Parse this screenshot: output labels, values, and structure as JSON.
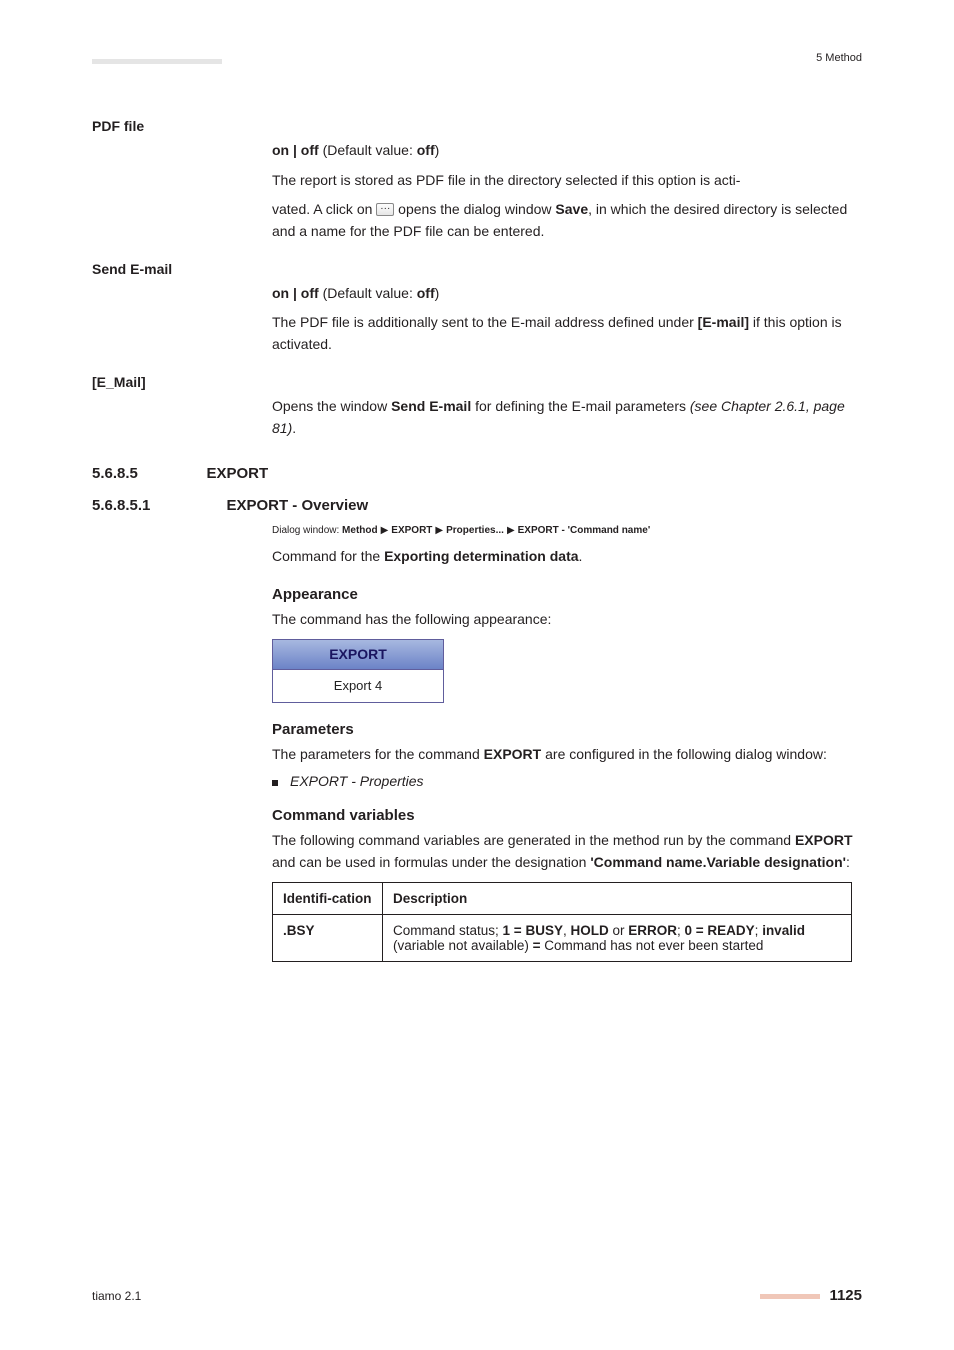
{
  "header": {
    "section": "5 Method"
  },
  "pdf_file": {
    "label": "PDF file",
    "option_line_html": "<b>on | off</b> (Default value: <b>off</b>)",
    "desc1": "The report is stored as PDF file in the directory selected if this option is acti-",
    "desc2_before": "vated. A click on ",
    "desc2_after_html": " opens the dialog window <b>Save</b>, in which the desired directory is selected and a name for the PDF file can be entered."
  },
  "send_email": {
    "label": "Send E-mail",
    "option_line_html": "<b>on | off</b> (Default value: <b>off</b>)",
    "desc_html": "The PDF file is additionally sent to the E-mail address defined under <b>[E-mail]</b> if this option is activated."
  },
  "e_mail": {
    "label": "[E_Mail]",
    "desc_html": "Opens the window <b>Send E-mail</b> for defining the E-mail parameters <i>(see Chapter 2.6.1, page 81)</i>."
  },
  "s568_5": {
    "num": "5.6.8.5",
    "title": "EXPORT"
  },
  "s568_51": {
    "num": "5.6.8.5.1",
    "title": "EXPORT - Overview",
    "path_parts": [
      "Dialog window: ",
      "Method",
      "EXPORT",
      "Properties...",
      "EXPORT - 'Command name'"
    ],
    "cmd_line_html": "Command for the <b>Exporting determination data</b>."
  },
  "appearance": {
    "heading": "Appearance",
    "text": "The command has the following appearance:",
    "box_top": "EXPORT",
    "box_bottom": "Export 4"
  },
  "parameters": {
    "heading": "Parameters",
    "text_html": "The parameters for the command <b>EXPORT</b> are configured in the following dialog window:",
    "bullet": "EXPORT - Properties"
  },
  "cmd_vars": {
    "heading": "Command variables",
    "text_html": "The following command variables are generated in the method run by the command <b>EXPORT</b> and can be used in formulas under the designation <b>'Command name.Variable designation'</b>:",
    "col1": "Identifi-cation",
    "col2": "Description",
    "row": {
      "id": ".BSY",
      "desc_html": "Command status; <b>1 = BUSY</b>, <b>HOLD</b> or <b>ERROR</b>; <b>0 = READY</b>; <b>invalid</b> (variable not available) <b>=</b> Command has not ever been started"
    }
  },
  "footer": {
    "left": "tiamo 2.1",
    "page": "1125"
  }
}
